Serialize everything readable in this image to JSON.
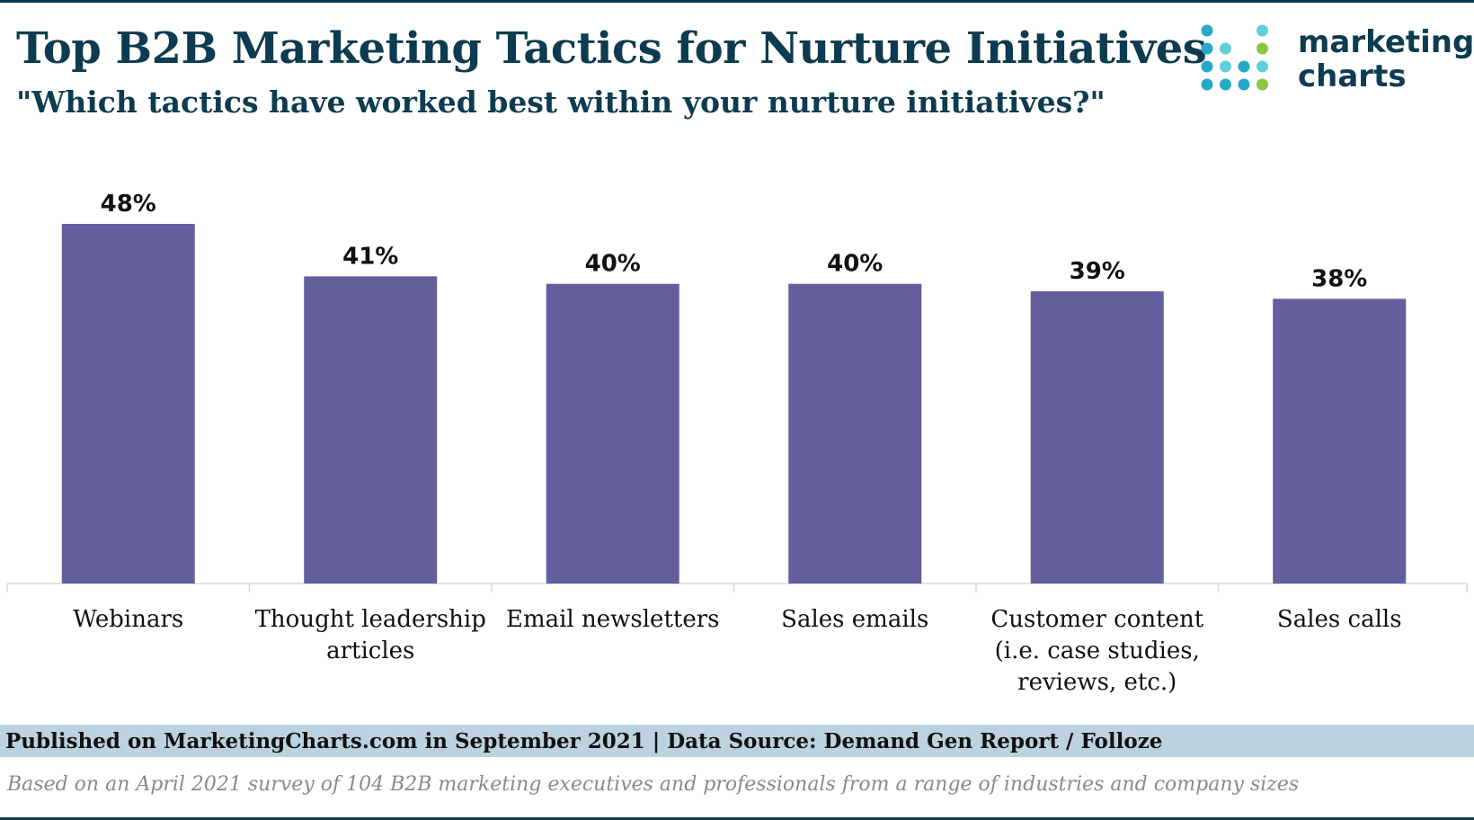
{
  "header": {
    "title": "Top B2B Marketing Tactics for Nurture Initiatives",
    "subtitle": "\"Which tactics have worked best within your nurture initiatives?\""
  },
  "logo": {
    "line1": "marketing",
    "line2": "charts",
    "colors": {
      "teal": "#25a9c4",
      "light_teal": "#5fd0d8",
      "green": "#8dc63f",
      "text": "#0d3b4f"
    }
  },
  "chart_data": {
    "type": "bar",
    "categories": [
      [
        "Webinars"
      ],
      [
        "Thought leadership",
        "articles"
      ],
      [
        "Email newsletters"
      ],
      [
        "Sales emails"
      ],
      [
        "Customer content",
        "(i.e. case studies,",
        "reviews, etc.)"
      ],
      [
        "Sales calls"
      ]
    ],
    "values": [
      48,
      41,
      40,
      40,
      39,
      38
    ],
    "data_labels": [
      "48%",
      "41%",
      "40%",
      "40%",
      "39%",
      "38%"
    ],
    "ylim": [
      0,
      48
    ],
    "grid": false,
    "bar_color": "#655e9c",
    "title": "",
    "xlabel": "",
    "ylabel": ""
  },
  "footer": {
    "source": "Published on MarketingCharts.com in September 2021 | Data Source: Demand Gen Report / Folloze",
    "note": "Based on an April 2021 survey of 104 B2B marketing executives and professionals from a range of industries and company sizes"
  }
}
